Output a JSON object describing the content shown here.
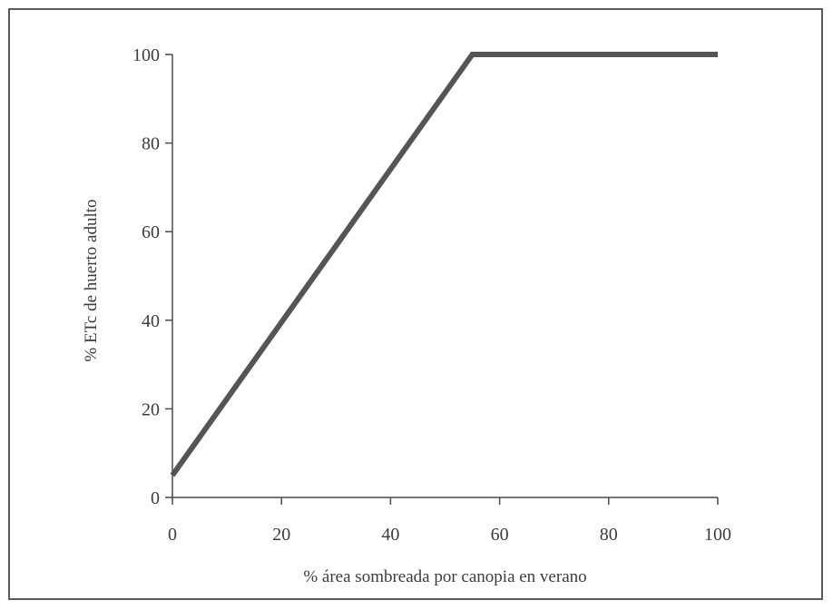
{
  "chart_data": {
    "type": "line",
    "title": "",
    "xlabel": "% área sombreada por canopia en verano",
    "ylabel": "% ETc de huerto adulto",
    "xlim": [
      0,
      100
    ],
    "ylim": [
      0,
      100
    ],
    "x_ticks": [
      0,
      20,
      40,
      60,
      80,
      100
    ],
    "y_ticks": [
      0,
      20,
      40,
      60,
      80,
      100
    ],
    "grid": false,
    "legend": "none",
    "series": [
      {
        "color": "#555555",
        "x": [
          0,
          55,
          100
        ],
        "y": [
          5,
          100,
          100
        ]
      }
    ]
  }
}
